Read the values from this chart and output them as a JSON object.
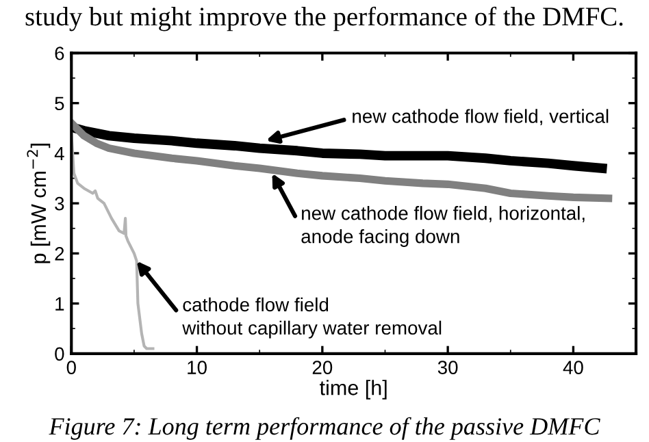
{
  "chart_data": {
    "type": "line",
    "xlabel": "time [h]",
    "ylabel": "p [mW cm$^{−2}$]",
    "xlim": [
      0,
      45
    ],
    "ylim": [
      0,
      6
    ],
    "xticks": [
      0,
      10,
      20,
      30,
      40
    ],
    "yticks": [
      0,
      1,
      2,
      3,
      4,
      5,
      6
    ],
    "grid": false,
    "legend": false,
    "marker": "none",
    "line_style": "solid",
    "series": [
      {
        "color": "#000000",
        "x": [
          0.3,
          1,
          3,
          5,
          8,
          10,
          13,
          15,
          18,
          20,
          23,
          25,
          28,
          30,
          33,
          35,
          38,
          40,
          42.3
        ],
        "values": [
          4.5,
          4.45,
          4.35,
          4.3,
          4.25,
          4.2,
          4.15,
          4.1,
          4.05,
          4.0,
          3.98,
          3.95,
          3.95,
          3.95,
          3.9,
          3.85,
          3.8,
          3.75,
          3.7
        ]
      },
      {
        "color": "#808080",
        "x": [
          0,
          1,
          2,
          3,
          5,
          8,
          10,
          13,
          15,
          18,
          20,
          23,
          25,
          28,
          30,
          33,
          35,
          38,
          40,
          42.8
        ],
        "values": [
          4.6,
          4.35,
          4.2,
          4.1,
          4.0,
          3.9,
          3.85,
          3.75,
          3.7,
          3.6,
          3.55,
          3.5,
          3.45,
          3.4,
          3.38,
          3.3,
          3.2,
          3.15,
          3.12,
          3.1
        ]
      },
      {
        "color": "#b4b4b4",
        "x": [
          0,
          0.2,
          0.5,
          1,
          1.7,
          1.9,
          2.1,
          2.6,
          3.2,
          3.8,
          4.2,
          4.3,
          4.35,
          4.5,
          5.0,
          5.2,
          5.3,
          5.6,
          5.8,
          6.0,
          6.5
        ],
        "values": [
          4.4,
          3.6,
          3.4,
          3.3,
          3.2,
          3.25,
          3.1,
          3.0,
          2.7,
          2.45,
          2.4,
          2.7,
          2.35,
          2.25,
          2.0,
          1.85,
          1.0,
          0.4,
          0.15,
          0.1,
          0.1
        ]
      }
    ],
    "annotations": [
      {
        "text": "new cathode flow field, vertical",
        "x": 15.5,
        "y": 4.25
      },
      {
        "text": "new cathode flow field, horizontal,\nanode facing down",
        "x": 16,
        "y": 3.6
      },
      {
        "text": "cathode flow field\nwithout capillary water removal",
        "x": 5.2,
        "y": 1.85
      },
      "study but might improve the performance of the DMFC.",
      "Figure 7: Long term performance of the passive DMFC"
    ]
  }
}
